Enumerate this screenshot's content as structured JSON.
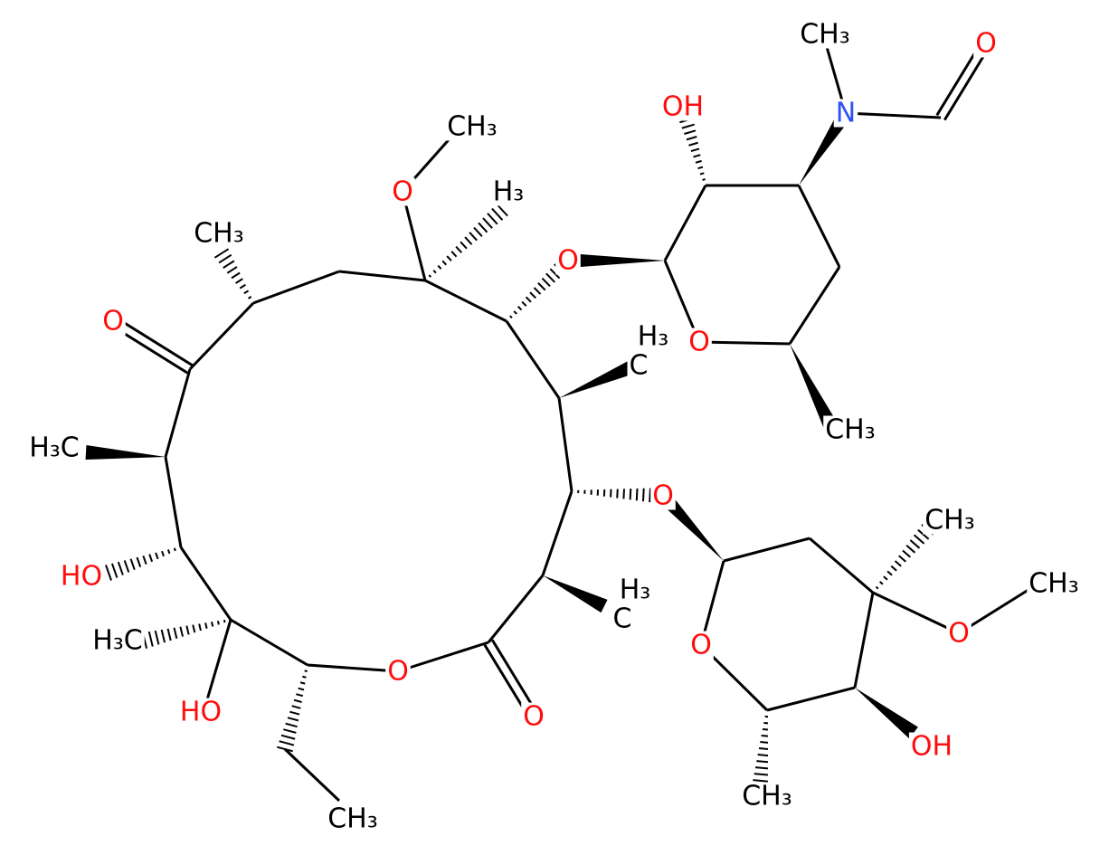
{
  "labels": [
    "CH₃",
    "O",
    "OH",
    "N",
    "O",
    "CH₃",
    "H₃",
    "CH₃",
    "O",
    "O",
    "H₃",
    "C",
    "O",
    "CH₃",
    "H₃C",
    "O",
    "CH₃",
    "HO",
    "CH₃",
    "H₃",
    "C",
    "H₃C",
    "O",
    "O",
    "O",
    "HO",
    "O",
    "OH",
    "CH₃",
    "CH₃"
  ]
}
